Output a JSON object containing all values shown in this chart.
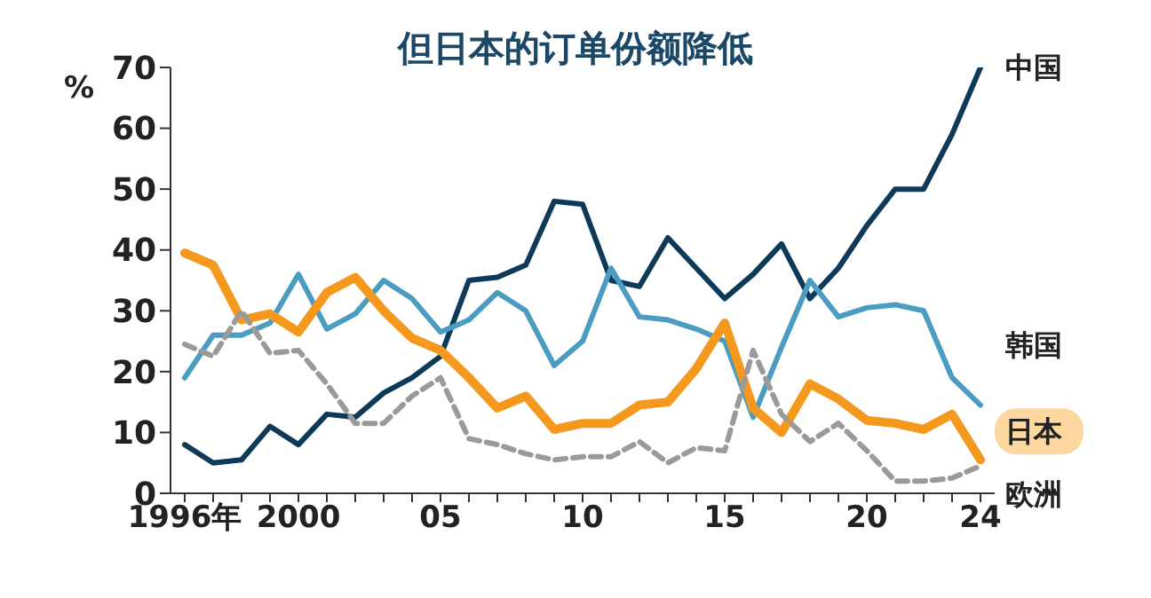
{
  "chart_data": {
    "type": "line",
    "title": "但日本的订单份额降低",
    "ylabel": "%",
    "x": [
      1996,
      1997,
      1998,
      1999,
      2000,
      2001,
      2002,
      2003,
      2004,
      2005,
      2006,
      2007,
      2008,
      2009,
      2010,
      2011,
      2012,
      2013,
      2014,
      2015,
      2016,
      2017,
      2018,
      2019,
      2020,
      2021,
      2022,
      2023,
      2024
    ],
    "series": [
      {
        "name": "中国",
        "color": "#0e3a5a",
        "values": [
          8,
          5,
          5.5,
          11,
          8,
          13,
          12.5,
          16.5,
          19,
          22.5,
          35,
          35.5,
          37.5,
          48,
          47.5,
          35,
          34,
          42,
          37,
          32,
          36,
          41,
          32,
          37,
          44,
          50,
          50,
          59,
          70
        ]
      },
      {
        "name": "韩国",
        "color": "#4a9cc0",
        "values": [
          19,
          26,
          26,
          28,
          36,
          27,
          29.5,
          35,
          32,
          26.5,
          28.5,
          33,
          30,
          21,
          25,
          37,
          29,
          28.5,
          27,
          25,
          12.5,
          24,
          35,
          29,
          30.5,
          31,
          30,
          19,
          14.5
        ]
      },
      {
        "name": "日本",
        "color": "#f5981e",
        "values": [
          39.5,
          37.5,
          28.5,
          29.5,
          26.5,
          33,
          35.5,
          30,
          25.5,
          23.5,
          19,
          14,
          16,
          10.5,
          11.5,
          11.5,
          14.5,
          15,
          20.5,
          28,
          14,
          10,
          18,
          15.5,
          12,
          11.5,
          10.5,
          13,
          5.5
        ]
      },
      {
        "name": "欧洲",
        "color": "#9a9a9a",
        "line_style": "dashed",
        "values": [
          24.5,
          22.5,
          30,
          23,
          23.5,
          18,
          11.5,
          11.5,
          16,
          19,
          9,
          8,
          6.5,
          5.5,
          6,
          6,
          8.5,
          5,
          7.5,
          7,
          23.5,
          13,
          8.5,
          11.5,
          7,
          2,
          2,
          2.5,
          4.5
        ]
      }
    ],
    "xlim": [
      1995.5,
      2024.5
    ],
    "xticks": [
      {
        "value": 1996,
        "label": "1996年"
      },
      {
        "value": 1997,
        "label": null
      },
      {
        "value": 1998,
        "label": null
      },
      {
        "value": 1999,
        "label": null
      },
      2000,
      {
        "value": 2001,
        "label": null
      },
      {
        "value": 2002,
        "label": null
      },
      {
        "value": 2003,
        "label": null
      },
      {
        "value": 2004,
        "label": null
      },
      {
        "value": 2005,
        "label": "05"
      },
      {
        "value": 2006,
        "label": null
      },
      {
        "value": 2007,
        "label": null
      },
      {
        "value": 2008,
        "label": null
      },
      {
        "value": 2009,
        "label": null
      },
      {
        "value": 2010,
        "label": "10"
      },
      {
        "value": 2011,
        "label": null
      },
      {
        "value": 2012,
        "label": null
      },
      {
        "value": 2013,
        "label": null
      },
      {
        "value": 2014,
        "label": null
      },
      {
        "value": 2015,
        "label": "15"
      },
      {
        "value": 2016,
        "label": null
      },
      {
        "value": 2017,
        "label": null
      },
      {
        "value": 2018,
        "label": null
      },
      {
        "value": 2019,
        "label": null
      },
      {
        "value": 2020,
        "label": "20"
      },
      {
        "value": 2021,
        "label": null
      },
      {
        "value": 2022,
        "label": null
      },
      {
        "value": 2023,
        "label": null
      },
      {
        "value": 2024,
        "label": "24"
      }
    ],
    "ylim": [
      0,
      70
    ],
    "yticks": [
      0,
      10,
      20,
      30,
      40,
      50,
      60,
      70
    ],
    "grid": false,
    "legend": false,
    "marker": "none",
    "line_style": "solid"
  }
}
